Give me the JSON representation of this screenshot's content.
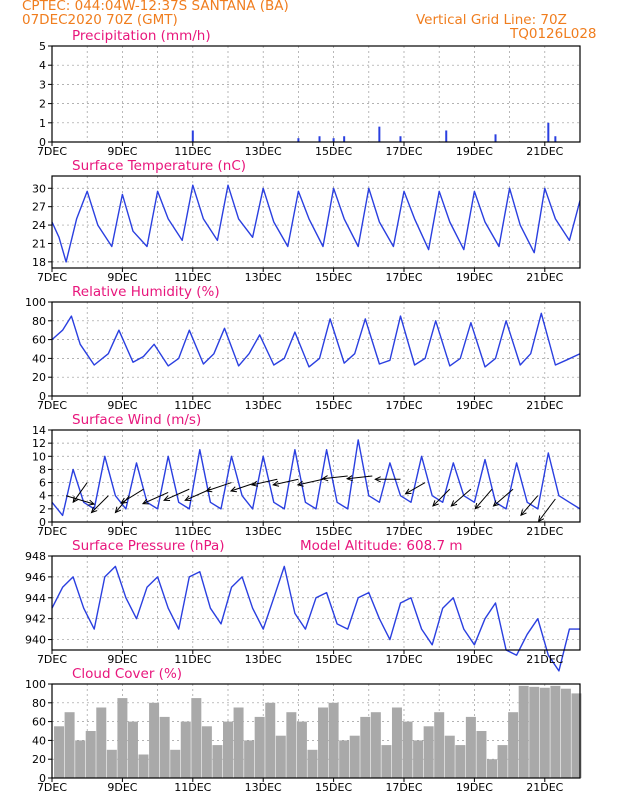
{
  "header": {
    "line1": "CPTEC:   044:04W-12:37S   SANTANA (BA)",
    "line2": "07DEC2020 70Z (GMT)",
    "right1": "Vertical Grid Line: 70Z",
    "right2": "TQ0126L028"
  },
  "x_axis": {
    "tick_labels": [
      "7DEC",
      "9DEC",
      "11DEC",
      "13DEC",
      "15DEC",
      "17DEC",
      "19DEC",
      "21DEC"
    ],
    "day_range": [
      7,
      22
    ]
  },
  "colors": {
    "header": "#f07d1e",
    "title": "#e8167c",
    "line": "#2a3fe0",
    "bar_precip": "#2a3fe0",
    "cloud": "#a9a9a9",
    "grid": "#9a9a9a"
  },
  "chart_data": [
    {
      "type": "bar",
      "title": "Precipitation (mm/h)",
      "ylim": [
        0,
        5
      ],
      "yticks": [
        0,
        1,
        2,
        3,
        4,
        5
      ],
      "series": [
        {
          "x": [
            11.0,
            14.0,
            14.6,
            15.0,
            15.3,
            16.3,
            16.9,
            18.2,
            19.6,
            21.1,
            21.3
          ],
          "values": [
            0.6,
            0.2,
            0.3,
            0.2,
            0.3,
            0.8,
            0.3,
            0.6,
            0.4,
            1.0,
            0.3
          ]
        }
      ]
    },
    {
      "type": "line",
      "title": "Surface Temperature (nC)",
      "ylim": [
        17,
        32
      ],
      "yticks": [
        18,
        21,
        24,
        27,
        30
      ],
      "series": [
        {
          "x": [
            7.0,
            7.2,
            7.4,
            7.7,
            8.0,
            8.3,
            8.7,
            9.0,
            9.3,
            9.7,
            10.0,
            10.3,
            10.7,
            11.0,
            11.3,
            11.7,
            12.0,
            12.3,
            12.7,
            13.0,
            13.3,
            13.7,
            14.0,
            14.3,
            14.7,
            15.0,
            15.3,
            15.7,
            16.0,
            16.3,
            16.7,
            17.0,
            17.3,
            17.7,
            18.0,
            18.3,
            18.7,
            19.0,
            19.3,
            19.7,
            20.0,
            20.3,
            20.7,
            21.0,
            21.3,
            21.7,
            22.0
          ],
          "values": [
            24.5,
            22,
            18,
            25,
            29.5,
            24,
            20.5,
            29,
            23,
            20.5,
            29.5,
            25,
            21.5,
            30.5,
            25,
            21.5,
            30.5,
            25,
            22,
            30,
            24.5,
            20.5,
            29.5,
            25,
            20.5,
            30,
            25,
            20.5,
            30,
            24.5,
            20.5,
            29.5,
            25,
            20,
            29.5,
            24.5,
            20,
            29.5,
            24.5,
            20.5,
            30,
            24,
            19.5,
            30,
            25,
            21.5,
            28
          ]
        }
      ]
    },
    {
      "type": "line",
      "title": "Relative Humidity (%)",
      "ylim": [
        0,
        100
      ],
      "yticks": [
        0,
        20,
        40,
        60,
        80,
        100
      ],
      "series": [
        {
          "x": [
            7.0,
            7.3,
            7.55,
            7.8,
            8.2,
            8.6,
            8.9,
            9.3,
            9.6,
            9.9,
            10.3,
            10.6,
            10.9,
            11.3,
            11.6,
            11.9,
            12.3,
            12.6,
            12.9,
            13.3,
            13.6,
            13.9,
            14.3,
            14.6,
            14.9,
            15.3,
            15.6,
            15.9,
            16.3,
            16.6,
            16.9,
            17.3,
            17.6,
            17.9,
            18.3,
            18.6,
            18.9,
            19.3,
            19.6,
            19.9,
            20.3,
            20.6,
            20.9,
            21.3,
            21.6,
            22.0
          ],
          "values": [
            60,
            70,
            85,
            55,
            33,
            45,
            70,
            36,
            42,
            55,
            32,
            40,
            70,
            34,
            45,
            72,
            32,
            45,
            65,
            33,
            40,
            68,
            31,
            40,
            82,
            35,
            45,
            82,
            34,
            38,
            85,
            33,
            40,
            80,
            32,
            40,
            78,
            31,
            40,
            80,
            33,
            45,
            88,
            33,
            38,
            45
          ]
        }
      ]
    },
    {
      "type": "line",
      "title": "Surface Wind (m/s)",
      "ylim": [
        0,
        14
      ],
      "yticks": [
        0,
        2,
        4,
        6,
        8,
        10,
        12,
        14
      ],
      "series": [
        {
          "x": [
            7.0,
            7.3,
            7.6,
            7.9,
            8.2,
            8.5,
            8.8,
            9.1,
            9.4,
            9.7,
            10.0,
            10.3,
            10.6,
            10.9,
            11.2,
            11.5,
            11.8,
            12.1,
            12.4,
            12.7,
            13.0,
            13.3,
            13.6,
            13.9,
            14.2,
            14.5,
            14.8,
            15.1,
            15.4,
            15.7,
            16.0,
            16.3,
            16.6,
            16.9,
            17.2,
            17.5,
            17.8,
            18.1,
            18.4,
            18.7,
            19.0,
            19.3,
            19.6,
            19.9,
            20.2,
            20.5,
            20.8,
            21.1,
            21.4,
            21.7,
            22.0
          ],
          "values": [
            3,
            1,
            8,
            3,
            2,
            10,
            4,
            2,
            9,
            3,
            2,
            10,
            3,
            2,
            11,
            3,
            2,
            10,
            4,
            2,
            10,
            3,
            2,
            11,
            3,
            2,
            11,
            3,
            2,
            12.5,
            4,
            3,
            9,
            4,
            3,
            10,
            4,
            3,
            9,
            4,
            3,
            9.5,
            3,
            2,
            9,
            3,
            2,
            10.5,
            4,
            3,
            2
          ]
        }
      ],
      "vectors": [
        {
          "x": 7.4,
          "y": 4,
          "dx": 1,
          "dy": -0.3
        },
        {
          "x": 8.0,
          "y": 6,
          "dx": -0.5,
          "dy": -0.7
        },
        {
          "x": 8.6,
          "y": 4,
          "dx": -0.6,
          "dy": -0.6
        },
        {
          "x": 9.2,
          "y": 4,
          "dx": -0.5,
          "dy": -0.6
        },
        {
          "x": 9.6,
          "y": 5,
          "dx": -0.8,
          "dy": -0.5
        },
        {
          "x": 10.3,
          "y": 4.5,
          "dx": -0.9,
          "dy": -0.4
        },
        {
          "x": 10.9,
          "y": 5,
          "dx": -0.9,
          "dy": -0.4
        },
        {
          "x": 11.5,
          "y": 5,
          "dx": -0.9,
          "dy": -0.4
        },
        {
          "x": 12.1,
          "y": 6,
          "dx": -0.9,
          "dy": -0.3
        },
        {
          "x": 12.8,
          "y": 6,
          "dx": -0.9,
          "dy": -0.3
        },
        {
          "x": 13.4,
          "y": 6.5,
          "dx": -0.9,
          "dy": -0.2
        },
        {
          "x": 14.0,
          "y": 6.5,
          "dx": -0.9,
          "dy": -0.2
        },
        {
          "x": 14.7,
          "y": 6.5,
          "dx": -0.9,
          "dy": -0.2
        },
        {
          "x": 15.4,
          "y": 7,
          "dx": -0.9,
          "dy": -0.1
        },
        {
          "x": 16.1,
          "y": 7,
          "dx": -0.9,
          "dy": -0.1
        },
        {
          "x": 16.9,
          "y": 6.5,
          "dx": -0.9,
          "dy": 0
        },
        {
          "x": 17.6,
          "y": 6,
          "dx": -0.7,
          "dy": -0.4
        },
        {
          "x": 18.3,
          "y": 5,
          "dx": -0.6,
          "dy": -0.6
        },
        {
          "x": 18.9,
          "y": 5,
          "dx": -0.7,
          "dy": -0.6
        },
        {
          "x": 19.5,
          "y": 5,
          "dx": -0.6,
          "dy": -0.7
        },
        {
          "x": 20.1,
          "y": 5,
          "dx": -0.7,
          "dy": -0.6
        },
        {
          "x": 20.8,
          "y": 4,
          "dx": -0.6,
          "dy": -0.7
        },
        {
          "x": 21.3,
          "y": 3.5,
          "dx": -0.6,
          "dy": -0.8
        }
      ]
    },
    {
      "type": "line",
      "title": "Surface Pressure (hPa)",
      "annotation": "Model Altitude: 608.7  m",
      "ylim": [
        939,
        948
      ],
      "yticks": [
        940,
        942,
        944,
        946,
        948
      ],
      "series": [
        {
          "x": [
            7.0,
            7.3,
            7.6,
            7.9,
            8.2,
            8.5,
            8.8,
            9.1,
            9.4,
            9.7,
            10.0,
            10.3,
            10.6,
            10.9,
            11.2,
            11.5,
            11.8,
            12.1,
            12.4,
            12.7,
            13.0,
            13.3,
            13.6,
            13.9,
            14.2,
            14.5,
            14.8,
            15.1,
            15.4,
            15.7,
            16.0,
            16.3,
            16.6,
            16.9,
            17.2,
            17.5,
            17.8,
            18.1,
            18.4,
            18.7,
            19.0,
            19.3,
            19.6,
            19.9,
            20.2,
            20.5,
            20.8,
            21.1,
            21.4,
            21.7,
            22.0
          ],
          "values": [
            943,
            945,
            946,
            943,
            941,
            946,
            947,
            944,
            942,
            945,
            946,
            943,
            941,
            946,
            946.5,
            943,
            941.5,
            945,
            946,
            943,
            941,
            944,
            947,
            942.5,
            941,
            944,
            944.5,
            941.5,
            941,
            944,
            944.5,
            942,
            940,
            943.5,
            944,
            941,
            939.5,
            943,
            944,
            941,
            939.5,
            942,
            943.5,
            939,
            938.5,
            940.5,
            942,
            938.5,
            937,
            941,
            941
          ]
        }
      ]
    },
    {
      "type": "bar",
      "title": "Cloud Cover (%)",
      "ylim": [
        0,
        100
      ],
      "yticks": [
        0,
        20,
        40,
        60,
        80,
        100
      ],
      "series": [
        {
          "x": [
            7.2,
            7.5,
            7.8,
            8.1,
            8.4,
            8.7,
            9.0,
            9.3,
            9.6,
            9.9,
            10.2,
            10.5,
            10.8,
            11.1,
            11.4,
            11.7,
            12.0,
            12.3,
            12.6,
            12.9,
            13.2,
            13.5,
            13.8,
            14.1,
            14.4,
            14.7,
            15.0,
            15.3,
            15.6,
            15.9,
            16.2,
            16.5,
            16.8,
            17.1,
            17.4,
            17.7,
            18.0,
            18.3,
            18.6,
            18.9,
            19.2,
            19.5,
            19.8,
            20.1,
            20.4,
            20.7,
            21.0,
            21.3,
            21.6,
            21.9
          ],
          "values": [
            55,
            70,
            40,
            50,
            75,
            30,
            85,
            60,
            25,
            80,
            65,
            30,
            60,
            85,
            55,
            35,
            60,
            75,
            40,
            65,
            80,
            45,
            70,
            60,
            30,
            75,
            80,
            40,
            45,
            65,
            70,
            35,
            75,
            60,
            40,
            55,
            70,
            45,
            35,
            65,
            50,
            20,
            35,
            70,
            98,
            97,
            96,
            98,
            95,
            90
          ]
        }
      ]
    }
  ]
}
